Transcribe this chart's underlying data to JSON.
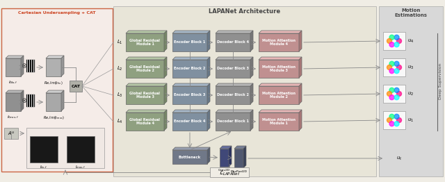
{
  "title_main": "LAPANet Architecture",
  "title_left": "Cartesian Undersampling + CAT",
  "title_right": "Motion\nEstimations",
  "bg_color": "#f0ede5",
  "left_bg": "#f5ece8",
  "right_bg": "#d8d8d8",
  "main_bg": "#e8e5d8",
  "grm_color": "#8fa080",
  "encoder_color": "#8090a0",
  "decoder_color": "#909090",
  "motion_color": "#c09090",
  "bottleneck_color": "#707888",
  "conv_color": "#404878",
  "maxpool_color": "#505870",
  "cat_color": "#b0b0a8",
  "A_color": "#c8c8c0",
  "levels": [
    "L_1",
    "L_2",
    "L_3",
    "L_4"
  ],
  "grm_labels": [
    "Global Residual\nModule 1",
    "Global Residual\nModule 2",
    "Global Residual\nModule 3",
    "Global Residual\nModule 4"
  ],
  "encoder_labels": [
    "Encoder Block 1",
    "Encoder Block 2",
    "Encoder Block 3",
    "Encoder Block 4"
  ],
  "decoder_labels": [
    "Decoder Block 4",
    "Decoder Block 3",
    "Decoder Block 2",
    "Decoder Block 1"
  ],
  "motion_labels": [
    "Motion Attention\nModule 4",
    "Motion Attention\nModule 3",
    "Motion Attention\nModule 2",
    "Motion Attention\nModule 1"
  ],
  "motion_outputs": [
    "u_4",
    "u_3",
    "u_2",
    "u_1"
  ],
  "loss_label": "L_{LAPANet}",
  "u_t_label": "u_t",
  "deep_sup_label": "Deep Supervision"
}
